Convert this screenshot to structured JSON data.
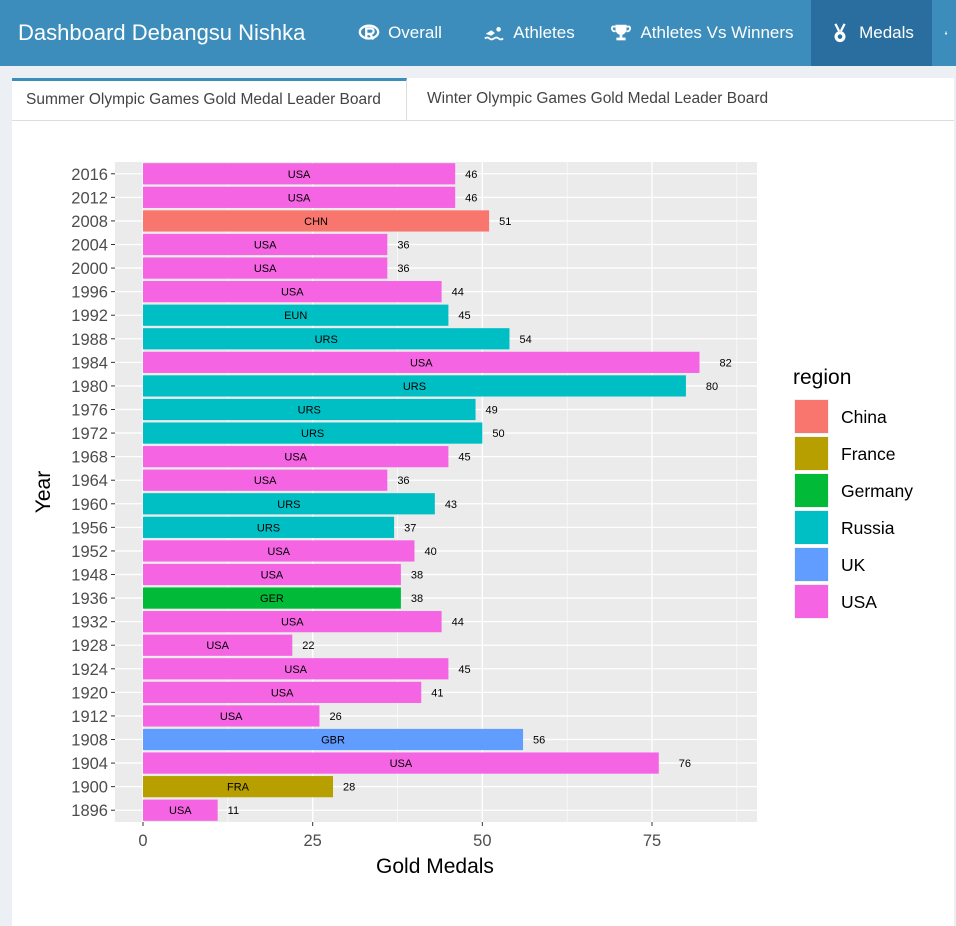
{
  "header": {
    "title": "Dashboard Debangsu Nishka",
    "nav": [
      {
        "label": "Overall",
        "icon": "r-logo-icon"
      },
      {
        "label": "Athletes",
        "icon": "swimmer-icon"
      },
      {
        "label": "Athletes Vs Winners",
        "icon": "trophy-icon"
      },
      {
        "label": "Medals",
        "icon": "medal-icon"
      }
    ],
    "active": "Medals"
  },
  "tabs": [
    {
      "label": "Summer Olympic Games Gold Medal Leader Board",
      "active": true
    },
    {
      "label": "Winter Olympic Games Gold Medal Leader Board",
      "active": false
    }
  ],
  "colors": {
    "China": "#F8766D",
    "France": "#B79F00",
    "Germany": "#00BA38",
    "Russia": "#00BFC4",
    "UK": "#619CFF",
    "USA": "#F564E3"
  },
  "chart_data": {
    "type": "bar",
    "orientation": "horizontal",
    "xlabel": "Gold Medals",
    "ylabel": "Year",
    "xlim": [
      0,
      90
    ],
    "xticks": [
      0,
      25,
      50,
      75
    ],
    "legend_title": "region",
    "legend": [
      "China",
      "France",
      "Germany",
      "Russia",
      "UK",
      "USA"
    ],
    "legend_position": "right",
    "grid": true,
    "bars": [
      {
        "year": "2016",
        "country": "USA",
        "region": "USA",
        "value": 46
      },
      {
        "year": "2012",
        "country": "USA",
        "region": "USA",
        "value": 46
      },
      {
        "year": "2008",
        "country": "CHN",
        "region": "China",
        "value": 51
      },
      {
        "year": "2004",
        "country": "USA",
        "region": "USA",
        "value": 36
      },
      {
        "year": "2000",
        "country": "USA",
        "region": "USA",
        "value": 36
      },
      {
        "year": "1996",
        "country": "USA",
        "region": "USA",
        "value": 44
      },
      {
        "year": "1992",
        "country": "EUN",
        "region": "Russia",
        "value": 45
      },
      {
        "year": "1988",
        "country": "URS",
        "region": "Russia",
        "value": 54
      },
      {
        "year": "1984",
        "country": "USA",
        "region": "USA",
        "value": 82
      },
      {
        "year": "1980",
        "country": "URS",
        "region": "Russia",
        "value": 80
      },
      {
        "year": "1976",
        "country": "URS",
        "region": "Russia",
        "value": 49
      },
      {
        "year": "1972",
        "country": "URS",
        "region": "Russia",
        "value": 50
      },
      {
        "year": "1968",
        "country": "USA",
        "region": "USA",
        "value": 45
      },
      {
        "year": "1964",
        "country": "USA",
        "region": "USA",
        "value": 36
      },
      {
        "year": "1960",
        "country": "URS",
        "region": "Russia",
        "value": 43
      },
      {
        "year": "1956",
        "country": "URS",
        "region": "Russia",
        "value": 37
      },
      {
        "year": "1952",
        "country": "USA",
        "region": "USA",
        "value": 40
      },
      {
        "year": "1948",
        "country": "USA",
        "region": "USA",
        "value": 38
      },
      {
        "year": "1936",
        "country": "GER",
        "region": "Germany",
        "value": 38
      },
      {
        "year": "1932",
        "country": "USA",
        "region": "USA",
        "value": 44
      },
      {
        "year": "1928",
        "country": "USA",
        "region": "USA",
        "value": 22
      },
      {
        "year": "1924",
        "country": "USA",
        "region": "USA",
        "value": 45
      },
      {
        "year": "1920",
        "country": "USA",
        "region": "USA",
        "value": 41
      },
      {
        "year": "1912",
        "country": "USA",
        "region": "USA",
        "value": 26
      },
      {
        "year": "1908",
        "country": "GBR",
        "region": "UK",
        "value": 56
      },
      {
        "year": "1904",
        "country": "USA",
        "region": "USA",
        "value": 76
      },
      {
        "year": "1900",
        "country": "FRA",
        "region": "France",
        "value": 28
      },
      {
        "year": "1896",
        "country": "USA",
        "region": "USA",
        "value": 11
      }
    ]
  }
}
